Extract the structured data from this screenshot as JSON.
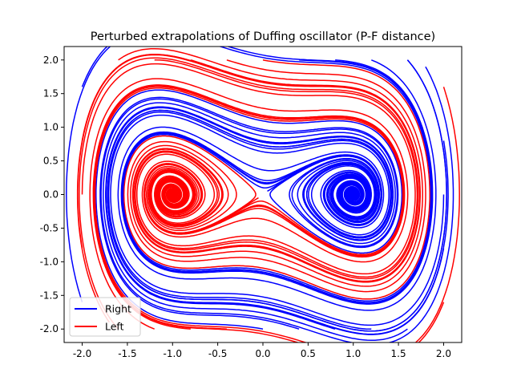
{
  "chart_data": {
    "type": "line",
    "title": "Perturbed extrapolations of Duffing oscillator (P-F distance)",
    "xlabel": "",
    "ylabel": "",
    "xlim": [
      -2.2,
      2.2
    ],
    "ylim": [
      -2.2,
      2.2
    ],
    "xticks": [
      "-2.0",
      "-1.5",
      "-1.0",
      "-0.5",
      "0.0",
      "0.5",
      "1.0",
      "1.5",
      "2.0"
    ],
    "yticks": [
      "2.0",
      "1.5",
      "1.0",
      "0.5",
      "0.0",
      "-0.5",
      "-1.0",
      "-1.5",
      "-2.0"
    ],
    "grid": false,
    "legend_position": "bottom-left",
    "series": [
      {
        "name": "Right",
        "color": "#0000ff",
        "attractor": [
          1.0,
          0.0
        ]
      },
      {
        "name": "Left",
        "color": "#ff0000",
        "attractor": [
          -1.0,
          0.0
        ]
      }
    ]
  }
}
